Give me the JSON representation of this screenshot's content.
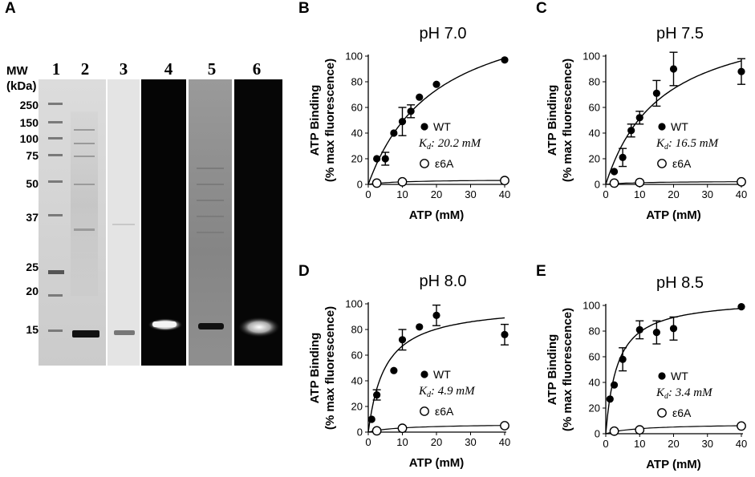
{
  "panel_a": {
    "letter": "A",
    "mw_label": "MW",
    "mw_unit": "(kDa)",
    "mw_markers": [
      "250",
      "150",
      "100",
      "75",
      "50",
      "37",
      "25",
      "20",
      "15"
    ],
    "lanes": [
      "1",
      "2",
      "3",
      "4",
      "5",
      "6"
    ]
  },
  "chart_data": [
    {
      "type": "scatter",
      "panel": "B",
      "title": "pH 7.0",
      "xlabel": "ATP (mM)",
      "ylabel_line1": "ATP Binding",
      "ylabel_line2": "(% max fluorescence)",
      "xlim": [
        0,
        40
      ],
      "ylim": [
        0,
        100
      ],
      "xticks": [
        0,
        10,
        20,
        30,
        40
      ],
      "yticks": [
        0,
        20,
        40,
        60,
        80,
        100
      ],
      "kd_text": "Kd: 20.2 mM",
      "kd_prefix": "K",
      "kd_sub": "d",
      "kd_value": ": 20.2 mM",
      "kd_mM": 20.2,
      "bmax": 148,
      "series": [
        {
          "name": "WT",
          "marker": "filled",
          "points": [
            {
              "x": 2.5,
              "y": 20,
              "err": 0
            },
            {
              "x": 5,
              "y": 20,
              "err": 5
            },
            {
              "x": 7.5,
              "y": 40,
              "err": 0
            },
            {
              "x": 10,
              "y": 49,
              "err": 11
            },
            {
              "x": 12.5,
              "y": 57,
              "err": 5
            },
            {
              "x": 15,
              "y": 68,
              "err": 0
            },
            {
              "x": 20,
              "y": 78,
              "err": 0
            },
            {
              "x": 40,
              "y": 97,
              "err": 0
            }
          ]
        },
        {
          "name": "ε6A",
          "marker": "open",
          "points": [
            {
              "x": 2.5,
              "y": 1,
              "err": 0
            },
            {
              "x": 10,
              "y": 2,
              "err": 0
            },
            {
              "x": 40,
              "y": 3,
              "err": 0
            }
          ]
        }
      ]
    },
    {
      "type": "scatter",
      "panel": "C",
      "title": "pH 7.5",
      "xlabel": "ATP (mM)",
      "ylabel_line1": "ATP Binding",
      "ylabel_line2": "(% max fluorescence)",
      "xlim": [
        0,
        40
      ],
      "ylim": [
        0,
        100
      ],
      "xticks": [
        0,
        10,
        20,
        30,
        40
      ],
      "yticks": [
        0,
        20,
        40,
        60,
        80,
        100
      ],
      "kd_text": "Kd: 16.5 mM",
      "kd_prefix": "K",
      "kd_sub": "d",
      "kd_value": ": 16.5 mM",
      "kd_mM": 16.5,
      "bmax": 136,
      "series": [
        {
          "name": "WT",
          "marker": "filled",
          "points": [
            {
              "x": 2.5,
              "y": 10,
              "err": 0
            },
            {
              "x": 5,
              "y": 21,
              "err": 7
            },
            {
              "x": 7.5,
              "y": 42,
              "err": 5
            },
            {
              "x": 10,
              "y": 52,
              "err": 5
            },
            {
              "x": 15,
              "y": 71,
              "err": 10
            },
            {
              "x": 20,
              "y": 90,
              "err": 13
            },
            {
              "x": 40,
              "y": 88,
              "err": 10
            }
          ]
        },
        {
          "name": "ε6A",
          "marker": "open",
          "points": [
            {
              "x": 2.5,
              "y": 1,
              "err": 0
            },
            {
              "x": 10,
              "y": 1.5,
              "err": 0
            },
            {
              "x": 40,
              "y": 2,
              "err": 0
            }
          ]
        }
      ]
    },
    {
      "type": "scatter",
      "panel": "D",
      "title": "pH 8.0",
      "xlabel": "ATP (mM)",
      "ylabel_line1": "ATP Binding",
      "ylabel_line2": "(% max fluorescence)",
      "xlim": [
        0,
        40
      ],
      "ylim": [
        0,
        100
      ],
      "xticks": [
        0,
        10,
        20,
        30,
        40
      ],
      "yticks": [
        0,
        20,
        40,
        60,
        80,
        100
      ],
      "kd_text": "Kd: 4.9 mM",
      "kd_prefix": "K",
      "kd_sub": "d",
      "kd_value": ": 4.9 mM",
      "kd_mM": 4.9,
      "bmax": 100,
      "series": [
        {
          "name": "WT",
          "marker": "filled",
          "points": [
            {
              "x": 1,
              "y": 10,
              "err": 0
            },
            {
              "x": 2.5,
              "y": 29,
              "err": 4
            },
            {
              "x": 7.5,
              "y": 48,
              "err": 0
            },
            {
              "x": 10,
              "y": 72,
              "err": 8
            },
            {
              "x": 15,
              "y": 82,
              "err": 0
            },
            {
              "x": 20,
              "y": 91,
              "err": 8
            },
            {
              "x": 40,
              "y": 76,
              "err": 8
            }
          ]
        },
        {
          "name": "ε6A",
          "marker": "open",
          "points": [
            {
              "x": 2.5,
              "y": 1,
              "err": 0
            },
            {
              "x": 10,
              "y": 3,
              "err": 0
            },
            {
              "x": 40,
              "y": 5,
              "err": 0
            }
          ]
        }
      ]
    },
    {
      "type": "scatter",
      "panel": "E",
      "title": "pH 8.5",
      "xlabel": "ATP (mM)",
      "ylabel_line1": "ATP Binding",
      "ylabel_line2": "(% max fluorescence)",
      "xlim": [
        0,
        40
      ],
      "ylim": [
        0,
        100
      ],
      "xticks": [
        0,
        10,
        20,
        30,
        40
      ],
      "yticks": [
        0,
        20,
        40,
        60,
        80,
        100
      ],
      "kd_text": "Kd: 3.4 mM",
      "kd_prefix": "K",
      "kd_sub": "d",
      "kd_value": ": 3.4 mM",
      "kd_mM": 3.4,
      "bmax": 106,
      "series": [
        {
          "name": "WT",
          "marker": "filled",
          "points": [
            {
              "x": 1.25,
              "y": 27,
              "err": 0
            },
            {
              "x": 2.5,
              "y": 38,
              "err": 0
            },
            {
              "x": 5,
              "y": 58,
              "err": 9
            },
            {
              "x": 10,
              "y": 81,
              "err": 7
            },
            {
              "x": 15,
              "y": 79,
              "err": 9
            },
            {
              "x": 20,
              "y": 82,
              "err": 9
            },
            {
              "x": 40,
              "y": 99,
              "err": 0
            }
          ]
        },
        {
          "name": "ε6A",
          "marker": "open",
          "points": [
            {
              "x": 2.5,
              "y": 2,
              "err": 0
            },
            {
              "x": 10,
              "y": 3,
              "err": 0
            },
            {
              "x": 40,
              "y": 6,
              "err": 0
            }
          ]
        }
      ]
    }
  ]
}
